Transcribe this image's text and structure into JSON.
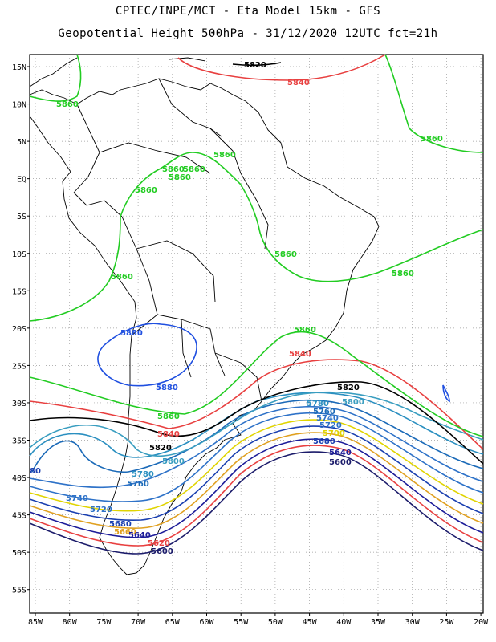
{
  "header": {
    "title": "CPTEC/INPE/MCT -  Eta Model 15km - GFS",
    "subtitle": "Geopotential Height 500hPa - 31/12/2020 12UTC fct=21h"
  },
  "axes": {
    "lat_labels": [
      "15N",
      "10N",
      "5N",
      "EQ",
      "5S",
      "10S",
      "15S",
      "20S",
      "25S",
      "30S",
      "35S",
      "40S",
      "45S",
      "50S",
      "55S"
    ],
    "lon_labels": [
      "85W",
      "80W",
      "75W",
      "70W",
      "65W",
      "60W",
      "55W",
      "50W",
      "45W",
      "40W",
      "35W",
      "30W",
      "25W",
      "20W"
    ]
  },
  "colors": {
    "c5600": "#1c1c6b",
    "c5640": "#1c1c99",
    "c5680": "#1a3fb0",
    "c5720": "#2e72c8",
    "c5760": "#1b6ab8",
    "c5780": "#2a8fc0",
    "c5800": "#3a9ec0",
    "c5820": "#000000",
    "c5840": "#e84040",
    "c5860": "#22cc22",
    "c5880": "#2050e0",
    "yellow": "#e0d400",
    "orange": "#e0a020"
  },
  "contour_labels": [
    {
      "text": "5820",
      "color": "#000000"
    },
    {
      "text": "5840",
      "color": "#e84040"
    },
    {
      "text": "5860",
      "color": "#22cc22"
    },
    {
      "text": "5860",
      "color": "#22cc22"
    },
    {
      "text": "5860",
      "color": "#22cc22"
    },
    {
      "text": "5860",
      "color": "#22cc22"
    },
    {
      "text": "5860",
      "color": "#22cc22"
    },
    {
      "text": "5860",
      "color": "#22cc22"
    },
    {
      "text": "5860",
      "color": "#22cc22"
    },
    {
      "text": "5860",
      "color": "#22cc22"
    },
    {
      "text": "5860",
      "color": "#22cc22"
    },
    {
      "text": "5860",
      "color": "#22cc22"
    },
    {
      "text": "5880",
      "color": "#2050e0"
    },
    {
      "text": "5880",
      "color": "#2050e0"
    },
    {
      "text": "5840",
      "color": "#e84040"
    },
    {
      "text": "5820",
      "color": "#000000"
    },
    {
      "text": "5800",
      "color": "#3a9ec0"
    },
    {
      "text": "5780",
      "color": "#2a8fc0"
    },
    {
      "text": "5760",
      "color": "#1b6ab8"
    },
    {
      "text": "5740",
      "color": "#2e72c8"
    },
    {
      "text": "5720",
      "color": "#2e72c8"
    },
    {
      "text": "5700",
      "color": "#e0d400"
    },
    {
      "text": "5680",
      "color": "#1a3fb0"
    },
    {
      "text": "5640",
      "color": "#1c1c99"
    },
    {
      "text": "5600",
      "color": "#1c1c6b"
    },
    {
      "text": "5820",
      "color": "#000000"
    },
    {
      "text": "5800",
      "color": "#3a9ec0"
    },
    {
      "text": "5780",
      "color": "#2a8fc0"
    },
    {
      "text": "5740",
      "color": "#2e72c8"
    },
    {
      "text": "5720",
      "color": "#2e72c8"
    },
    {
      "text": "5680",
      "color": "#1a3fb0"
    },
    {
      "text": "5660",
      "color": "#e0a020"
    },
    {
      "text": "5640",
      "color": "#1c1c99"
    },
    {
      "text": "5620",
      "color": "#e84040"
    },
    {
      "text": "5600",
      "color": "#1c1c6b"
    },
    {
      "text": "80",
      "color": "#1a3fb0"
    },
    {
      "text": "5840",
      "color": "#e84040"
    },
    {
      "text": "5860",
      "color": "#22cc22"
    },
    {
      "text": "5860",
      "color": "#22cc22"
    },
    {
      "text": "5760",
      "color": "#1b6ab8"
    }
  ]
}
